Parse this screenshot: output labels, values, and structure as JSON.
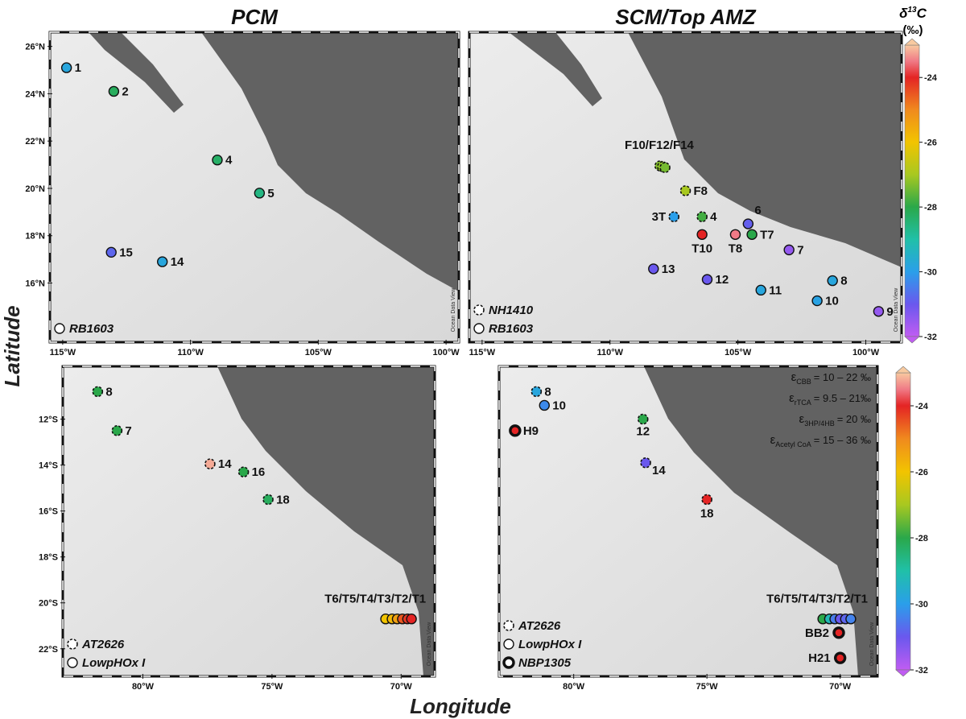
{
  "map_data": {
    "x_label": "Longitude",
    "y_label": "Latitude",
    "colorbar": {
      "title": [
        "δ",
        "13",
        "C"
      ],
      "unit": "(‰)",
      "clim": [
        -32,
        -23
      ],
      "ticks": [
        -24,
        -26,
        -28,
        -30,
        -32
      ],
      "colormap": [
        {
          "value": -32,
          "color": "#c05cf2"
        },
        {
          "value": -31,
          "color": "#6a58ee"
        },
        {
          "value": -30,
          "color": "#2a9fea"
        },
        {
          "value": -29,
          "color": "#20c0a8"
        },
        {
          "value": -28,
          "color": "#2aa84a"
        },
        {
          "value": -27,
          "color": "#a8c820"
        },
        {
          "value": -26,
          "color": "#f2c400"
        },
        {
          "value": -25,
          "color": "#f08a1e"
        },
        {
          "value": -24,
          "color": "#e42424"
        },
        {
          "value": -23.5,
          "color": "#f07a86"
        },
        {
          "value": -23,
          "color": "#f8caa0"
        }
      ]
    },
    "panels": [
      {
        "title": "PCM",
        "xlim": [
          -115.5,
          -99.5
        ],
        "ylim": [
          13.5,
          26.6
        ],
        "watermark": "Ocean Data View",
        "lat_ticks": [
          {
            "value": 26,
            "label": "26°N"
          },
          {
            "value": 24,
            "label": "24°N"
          },
          {
            "value": 22,
            "label": "22°N"
          },
          {
            "value": 20,
            "label": "20°N"
          },
          {
            "value": 18,
            "label": "18°N"
          },
          {
            "value": 16,
            "label": "16°N"
          }
        ],
        "lon_ticks": [
          {
            "value": -115,
            "label": "115°W"
          },
          {
            "value": -110,
            "label": "110°W"
          },
          {
            "value": -105,
            "label": "105°W"
          },
          {
            "value": -100,
            "label": "100°W"
          }
        ],
        "legend": [
          {
            "name": "RB1603",
            "style": "solid"
          }
        ],
        "stations": [
          {
            "label": "1",
            "points": [
              {
                "lon": -114.85,
                "lat": 25.1,
                "d13c": -29.8,
                "cruise": "RB1603"
              }
            ]
          },
          {
            "label": "2",
            "points": [
              {
                "lon": -113.0,
                "lat": 24.1,
                "d13c": -28.2,
                "cruise": "RB1603"
              }
            ]
          },
          {
            "label": "4",
            "points": [
              {
                "lon": -108.95,
                "lat": 21.2,
                "d13c": -28.3,
                "cruise": "RB1603"
              }
            ]
          },
          {
            "label": "5",
            "points": [
              {
                "lon": -107.3,
                "lat": 19.8,
                "d13c": -28.6,
                "cruise": "RB1603"
              }
            ]
          },
          {
            "label": "15",
            "points": [
              {
                "lon": -113.1,
                "lat": 17.3,
                "d13c": -30.8,
                "cruise": "RB1603"
              }
            ]
          },
          {
            "label": "14",
            "points": [
              {
                "lon": -111.1,
                "lat": 16.9,
                "d13c": -29.8,
                "cruise": "RB1603"
              }
            ]
          }
        ]
      },
      {
        "title": "SCM/Top AMZ",
        "xlim": [
          -115.5,
          -98.6
        ],
        "ylim": [
          13.5,
          26.6
        ],
        "watermark": "Ocean Data View",
        "lat_ticks": [],
        "lon_ticks": [
          {
            "value": -115,
            "label": "115°W"
          },
          {
            "value": -110,
            "label": "110°W"
          },
          {
            "value": -105,
            "label": "105°W"
          },
          {
            "value": -100,
            "label": "100°W"
          }
        ],
        "legend": [
          {
            "name": "NH1410",
            "style": "dashed"
          },
          {
            "name": "RB1603",
            "style": "solid"
          }
        ],
        "stations": [
          {
            "label": "F10/F12/F14",
            "points": [
              {
                "lon": -108.05,
                "lat": 20.95,
                "d13c": -27.3,
                "cruise": "NH1410"
              },
              {
                "lon": -107.95,
                "lat": 20.92,
                "d13c": -27.2,
                "cruise": "NH1410"
              },
              {
                "lon": -107.85,
                "lat": 20.88,
                "d13c": -27.4,
                "cruise": "NH1410"
              }
            ]
          },
          {
            "label": "F8",
            "points": [
              {
                "lon": -107.05,
                "lat": 19.9,
                "d13c": -27.0,
                "cruise": "NH1410"
              }
            ]
          },
          {
            "label": "3T",
            "points": [
              {
                "lon": -107.5,
                "lat": 18.8,
                "d13c": -30.0,
                "cruise": "NH1410"
              }
            ]
          },
          {
            "label": "4",
            "points": [
              {
                "lon": -106.4,
                "lat": 18.8,
                "d13c": -27.8,
                "cruise": "NH1410"
              }
            ]
          },
          {
            "label": "T10",
            "points": [
              {
                "lon": -106.4,
                "lat": 18.05,
                "d13c": -24.0,
                "cruise": "RB1603"
              }
            ]
          },
          {
            "label": "T8",
            "points": [
              {
                "lon": -105.1,
                "lat": 18.05,
                "d13c": -23.5,
                "cruise": "RB1603"
              }
            ]
          },
          {
            "label": "T7",
            "points": [
              {
                "lon": -104.45,
                "lat": 18.05,
                "d13c": -28.0,
                "cruise": "RB1603"
              }
            ]
          },
          {
            "label": "6",
            "points": [
              {
                "lon": -104.6,
                "lat": 18.5,
                "d13c": -30.9,
                "cruise": "RB1603"
              }
            ]
          },
          {
            "label": "7",
            "points": [
              {
                "lon": -103.0,
                "lat": 17.4,
                "d13c": -31.5,
                "cruise": "RB1603"
              }
            ]
          },
          {
            "label": "13",
            "points": [
              {
                "lon": -108.3,
                "lat": 16.6,
                "d13c": -31.0,
                "cruise": "RB1603"
              }
            ]
          },
          {
            "label": "12",
            "points": [
              {
                "lon": -106.2,
                "lat": 16.15,
                "d13c": -31.0,
                "cruise": "RB1603"
              }
            ]
          },
          {
            "label": "11",
            "points": [
              {
                "lon": -104.1,
                "lat": 15.7,
                "d13c": -29.8,
                "cruise": "RB1603"
              }
            ]
          },
          {
            "label": "8",
            "points": [
              {
                "lon": -101.3,
                "lat": 16.1,
                "d13c": -29.8,
                "cruise": "RB1603"
              }
            ]
          },
          {
            "label": "10",
            "points": [
              {
                "lon": -101.9,
                "lat": 15.25,
                "d13c": -29.9,
                "cruise": "RB1603"
              }
            ]
          },
          {
            "label": "9",
            "points": [
              {
                "lon": -99.5,
                "lat": 14.8,
                "d13c": -31.5,
                "cruise": "RB1603"
              }
            ]
          }
        ]
      },
      {
        "xlim": [
          -83.1,
          -68.7
        ],
        "ylim": [
          -23.2,
          -9.7
        ],
        "watermark": "Ocean Data View",
        "lat_ticks": [
          {
            "value": -12,
            "label": "12°S"
          },
          {
            "value": -14,
            "label": "14°S"
          },
          {
            "value": -16,
            "label": "16°S"
          },
          {
            "value": -18,
            "label": "18°S"
          },
          {
            "value": -20,
            "label": "20°S"
          },
          {
            "value": -22,
            "label": "22°S"
          }
        ],
        "lon_ticks": [
          {
            "value": -80,
            "label": "80°W"
          },
          {
            "value": -75,
            "label": "75°W"
          },
          {
            "value": -70,
            "label": "70°W"
          }
        ],
        "legend": [
          {
            "name": "AT2626",
            "style": "dashed"
          },
          {
            "name": "LowpHOx I",
            "style": "solid"
          }
        ],
        "stations": [
          {
            "label": "8",
            "points": [
              {
                "lon": -81.75,
                "lat": -10.8,
                "d13c": -28.0,
                "cruise": "AT2626"
              }
            ]
          },
          {
            "label": "7",
            "points": [
              {
                "lon": -81.0,
                "lat": -12.5,
                "d13c": -28.0,
                "cruise": "AT2626"
              }
            ]
          },
          {
            "label": "14",
            "points": [
              {
                "lon": -77.4,
                "lat": -13.95,
                "d13c": -23.2,
                "cruise": "AT2626"
              }
            ]
          },
          {
            "label": "16",
            "points": [
              {
                "lon": -76.1,
                "lat": -14.3,
                "d13c": -28.0,
                "cruise": "AT2626"
              }
            ]
          },
          {
            "label": "18",
            "points": [
              {
                "lon": -75.15,
                "lat": -15.5,
                "d13c": -28.2,
                "cruise": "AT2626"
              }
            ]
          },
          {
            "label": "T6/T5/T4/T3/T2/T1",
            "points": [
              {
                "lon": -70.6,
                "lat": -20.7,
                "d13c": -26.0,
                "cruise": "LowpHOx I"
              },
              {
                "lon": -70.35,
                "lat": -20.7,
                "d13c": -25.8,
                "cruise": "LowpHOx I"
              },
              {
                "lon": -70.15,
                "lat": -20.7,
                "d13c": -25.4,
                "cruise": "LowpHOx I"
              },
              {
                "lon": -69.95,
                "lat": -20.7,
                "d13c": -24.5,
                "cruise": "LowpHOx I"
              },
              {
                "lon": -69.75,
                "lat": -20.7,
                "d13c": -24.2,
                "cruise": "LowpHOx I"
              },
              {
                "lon": -69.6,
                "lat": -20.7,
                "d13c": -24.0,
                "cruise": "LowpHOx I"
              }
            ]
          }
        ]
      },
      {
        "xlim": [
          -82.8,
          -68.6
        ],
        "ylim": [
          -23.2,
          -9.7
        ],
        "watermark": "Ocean Data View",
        "lat_ticks": [],
        "lon_ticks": [
          {
            "value": -80,
            "label": "80°W"
          },
          {
            "value": -75,
            "label": "75°W"
          },
          {
            "value": -70,
            "label": "70°W"
          }
        ],
        "legend": [
          {
            "name": "AT2626",
            "style": "dashed"
          },
          {
            "name": "LowpHOx I",
            "style": "solid"
          },
          {
            "name": "NBP1305",
            "style": "thick"
          }
        ],
        "annotations": [
          {
            "symbol": "ε",
            "sub": "CBB",
            "text": "= 10 – 22 ‰"
          },
          {
            "symbol": "ε",
            "sub": "rTCA",
            "text": "= 9.5 – 21‰"
          },
          {
            "symbol": "ε",
            "sub": "3HP/4HB",
            "text": "= 20 ‰"
          },
          {
            "symbol": "ε",
            "sub": "Acetyl CoA",
            "text": "= 15 – 36 ‰"
          }
        ],
        "stations": [
          {
            "label": "8",
            "points": [
              {
                "lon": -81.4,
                "lat": -10.8,
                "d13c": -29.8,
                "cruise": "AT2626"
              }
            ]
          },
          {
            "label": "10",
            "points": [
              {
                "lon": -81.1,
                "lat": -11.4,
                "d13c": -30.3,
                "cruise": "LowpHOx I"
              }
            ]
          },
          {
            "label": "H9",
            "points": [
              {
                "lon": -82.2,
                "lat": -12.5,
                "d13c": -24.0,
                "cruise": "NBP1305"
              }
            ]
          },
          {
            "label": "12",
            "points": [
              {
                "lon": -77.4,
                "lat": -12.0,
                "d13c": -28.0,
                "cruise": "AT2626"
              }
            ]
          },
          {
            "label": "14",
            "points": [
              {
                "lon": -77.3,
                "lat": -13.9,
                "d13c": -31.0,
                "cruise": "AT2626"
              }
            ]
          },
          {
            "label": "18",
            "points": [
              {
                "lon": -75.0,
                "lat": -15.5,
                "d13c": -24.0,
                "cruise": "AT2626"
              }
            ]
          },
          {
            "label": "T6/T5/T4/T3/T2/T1",
            "points": [
              {
                "lon": -70.65,
                "lat": -20.7,
                "d13c": -28.0,
                "cruise": "LowpHOx I"
              },
              {
                "lon": -70.4,
                "lat": -20.7,
                "d13c": -29.2,
                "cruise": "LowpHOx I"
              },
              {
                "lon": -70.2,
                "lat": -20.7,
                "d13c": -30.5,
                "cruise": "LowpHOx I"
              },
              {
                "lon": -70.0,
                "lat": -20.7,
                "d13c": -31.0,
                "cruise": "LowpHOx I"
              },
              {
                "lon": -69.8,
                "lat": -20.7,
                "d13c": -30.8,
                "cruise": "LowpHOx I"
              },
              {
                "lon": -69.6,
                "lat": -20.7,
                "d13c": -30.4,
                "cruise": "LowpHOx I"
              }
            ]
          },
          {
            "label": "BB2",
            "points": [
              {
                "lon": -70.05,
                "lat": -21.3,
                "d13c": -24.0,
                "cruise": "NBP1305"
              }
            ]
          },
          {
            "label": "H21",
            "points": [
              {
                "lon": -70.0,
                "lat": -22.4,
                "d13c": -24.0,
                "cruise": "NBP1305"
              }
            ]
          }
        ]
      }
    ]
  }
}
